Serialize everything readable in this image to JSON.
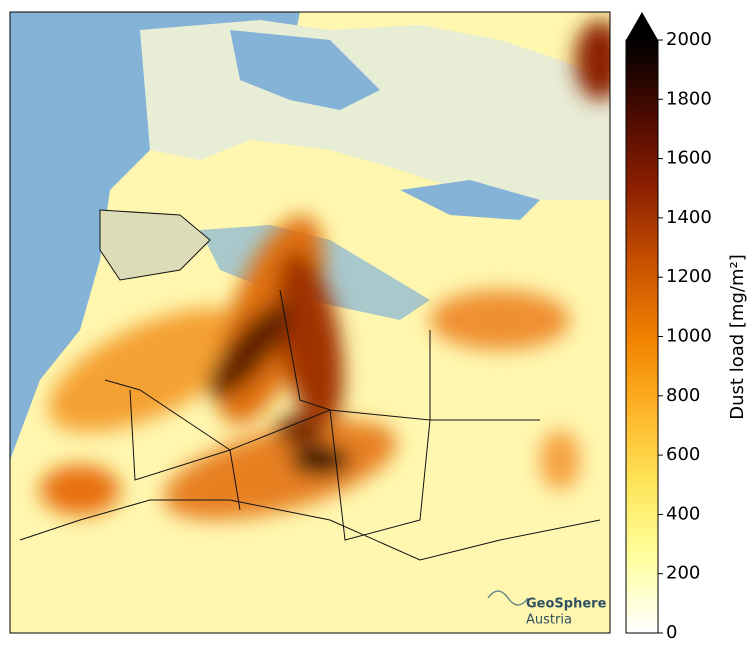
{
  "colorbar": {
    "label": "Dust load [mg/m²]",
    "lim": [
      0,
      2000
    ],
    "ticks": [
      0,
      200,
      400,
      600,
      800,
      1000,
      1200,
      1400,
      1600,
      1800,
      2000
    ],
    "extend": "max",
    "colors": [
      "#ffffff",
      "#ffffa0",
      "#ffe65a",
      "#ffb428",
      "#f08000",
      "#c85000",
      "#8c2000",
      "#4a0a00",
      "#000000"
    ]
  },
  "logo": {
    "name": "GeoSphere",
    "sub": "Austria"
  }
}
